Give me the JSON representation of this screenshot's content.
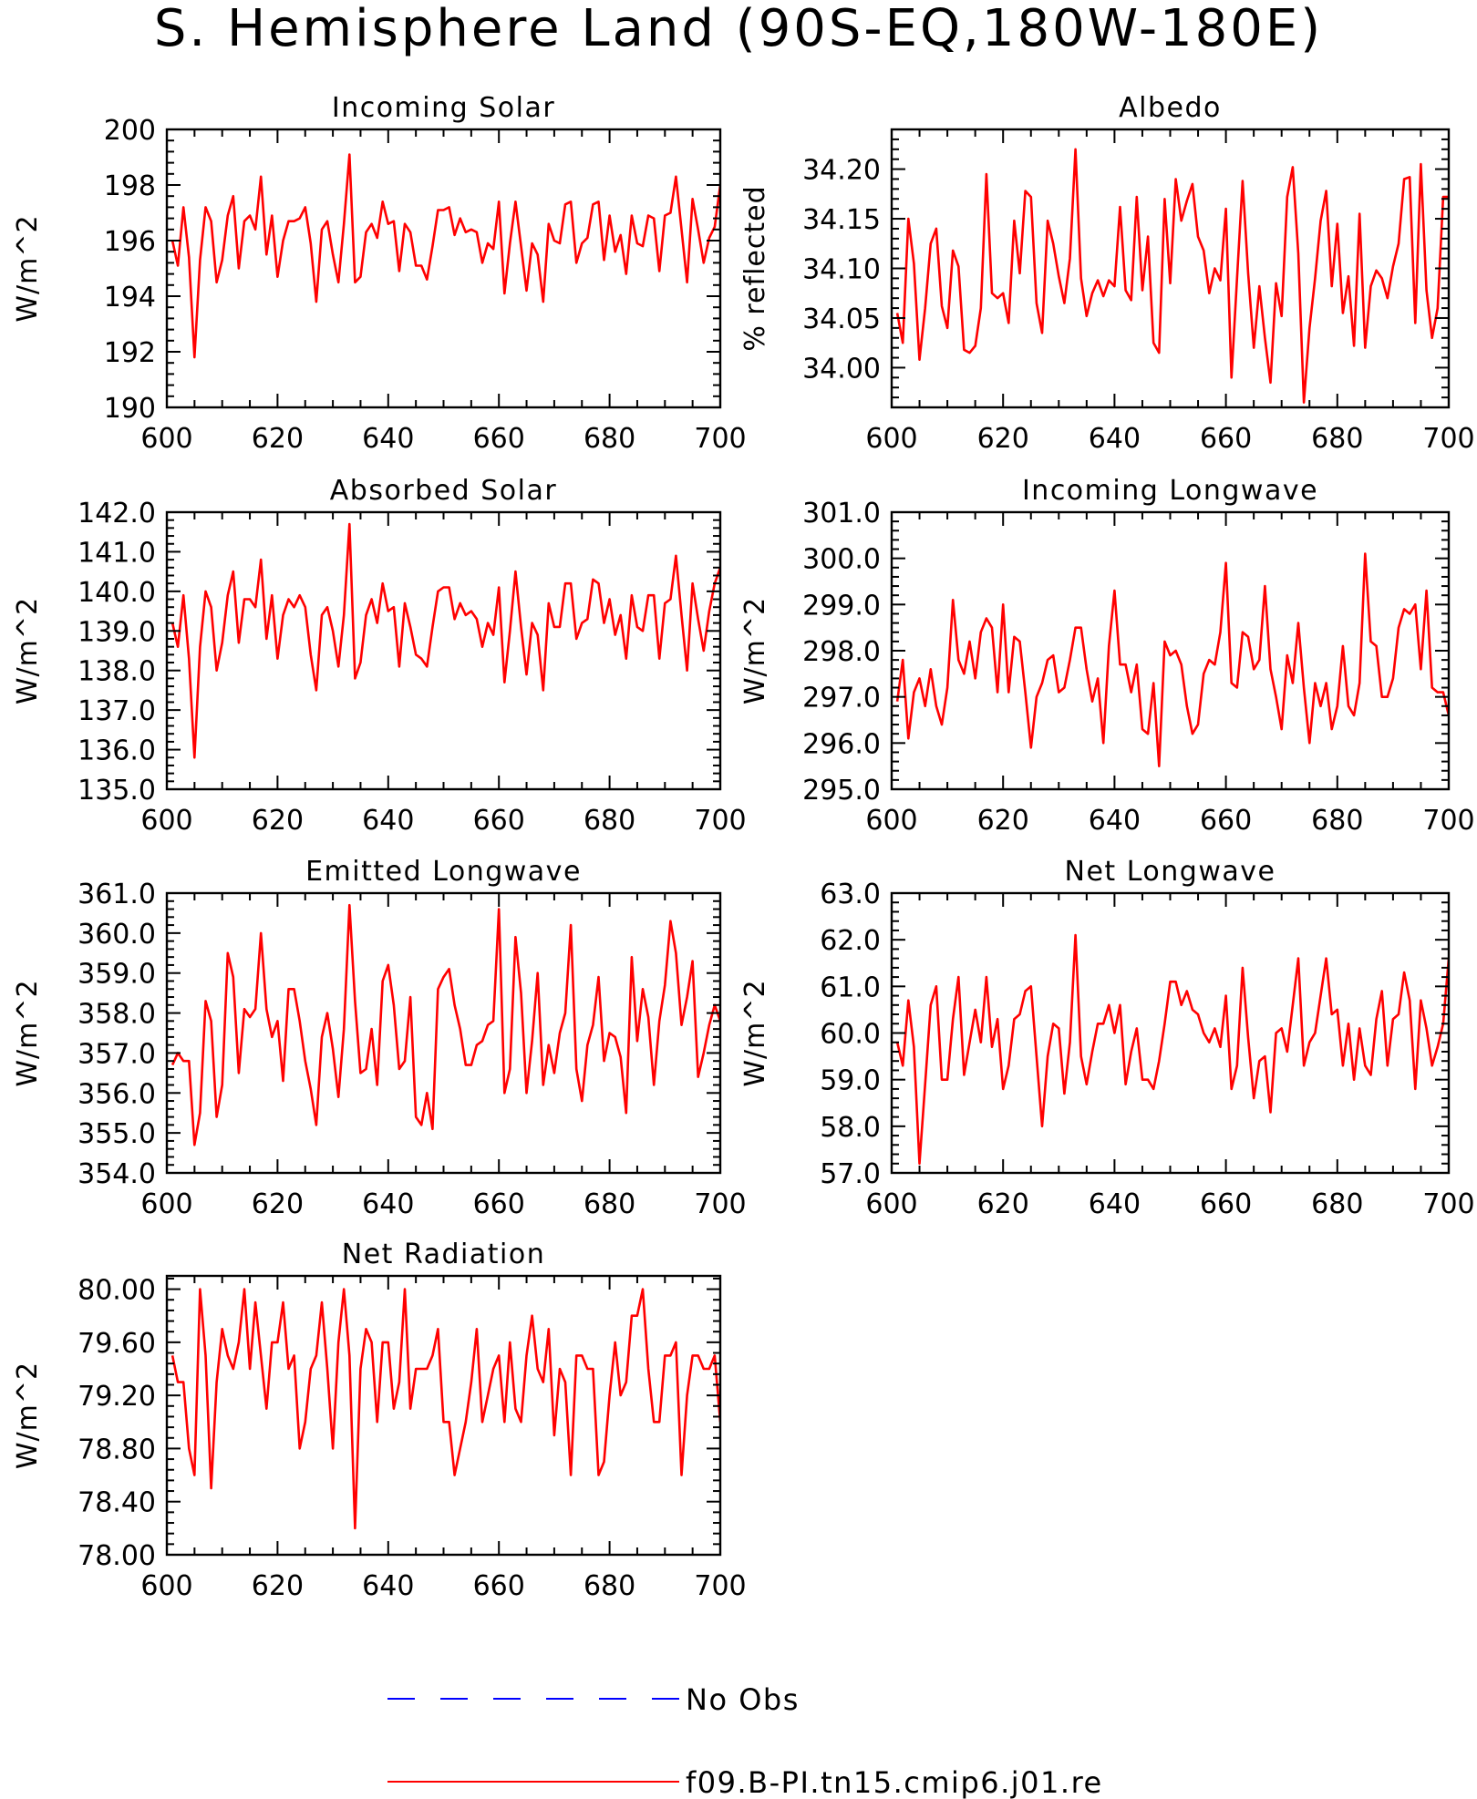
{
  "title": "S. Hemisphere Land (90S-EQ,180W-180E)",
  "legend": [
    {
      "label": "No Obs",
      "color": "#0000ff",
      "dash": true
    },
    {
      "label": "f09.B-PI.tn15.cmip6.j01.re",
      "color": "#ff0000",
      "dash": false
    }
  ],
  "chart_data": [
    {
      "type": "line",
      "title": "Incoming Solar",
      "ylabel": "W/m^2",
      "xlim": [
        600,
        700
      ],
      "ylim": [
        190,
        200
      ],
      "xticks": [
        600,
        620,
        640,
        660,
        680,
        700
      ],
      "yticks": [
        190,
        192,
        194,
        196,
        198,
        200
      ],
      "ytick_labels": [
        "190",
        "192",
        "194",
        "196",
        "198",
        "200"
      ],
      "x_start": 601,
      "series": [
        {
          "color": "#ff0000",
          "values": [
            196.0,
            195.1,
            197.2,
            195.4,
            191.8,
            195.3,
            197.2,
            196.7,
            194.5,
            195.3,
            196.9,
            197.6,
            195.0,
            196.7,
            196.9,
            196.4,
            198.3,
            195.5,
            196.9,
            194.7,
            196.0,
            196.7,
            196.7,
            196.8,
            197.2,
            195.9,
            193.8,
            196.4,
            196.7,
            195.5,
            194.5,
            196.6,
            199.1,
            194.5,
            194.7,
            196.3,
            196.6,
            196.1,
            197.4,
            196.6,
            196.7,
            194.9,
            196.6,
            196.3,
            195.1,
            195.1,
            194.6,
            195.8,
            197.1,
            197.1,
            197.2,
            196.2,
            196.8,
            196.3,
            196.4,
            196.3,
            195.2,
            195.9,
            195.7,
            197.4,
            194.1,
            195.9,
            197.4,
            195.8,
            194.2,
            195.9,
            195.5,
            193.8,
            196.6,
            196.0,
            195.9,
            197.3,
            197.4,
            195.2,
            195.9,
            196.1,
            197.3,
            197.4,
            195.3,
            196.9,
            195.6,
            196.2,
            194.8,
            196.9,
            195.9,
            195.8,
            196.9,
            196.8,
            194.9,
            196.9,
            197.0,
            198.3,
            196.4,
            194.5,
            197.5,
            196.4,
            195.2,
            196.1,
            196.5,
            198.0
          ]
        }
      ]
    },
    {
      "type": "line",
      "title": "Albedo",
      "ylabel": "% reflected",
      "xlim": [
        600,
        700
      ],
      "ylim": [
        33.96,
        34.24
      ],
      "xticks": [
        600,
        620,
        640,
        660,
        680,
        700
      ],
      "yticks": [
        34.0,
        34.05,
        34.1,
        34.15,
        34.2
      ],
      "ytick_labels": [
        "34.00",
        "34.05",
        "34.10",
        "34.15",
        "34.20"
      ],
      "x_start": 601,
      "series": [
        {
          "color": "#ff0000",
          "values": [
            34.055,
            34.025,
            34.15,
            34.105,
            34.008,
            34.06,
            34.125,
            34.14,
            34.062,
            34.04,
            34.118,
            34.102,
            34.018,
            34.015,
            34.022,
            34.06,
            34.195,
            34.075,
            34.07,
            34.075,
            34.045,
            34.148,
            34.095,
            34.178,
            34.172,
            34.065,
            34.035,
            34.148,
            34.125,
            34.092,
            34.065,
            34.11,
            34.22,
            34.09,
            34.052,
            34.075,
            34.088,
            34.072,
            34.088,
            34.082,
            34.162,
            34.078,
            34.068,
            34.172,
            34.078,
            34.132,
            34.025,
            34.015,
            34.17,
            34.085,
            34.19,
            34.148,
            34.168,
            34.185,
            34.132,
            34.118,
            34.075,
            34.1,
            34.088,
            34.16,
            33.99,
            34.09,
            34.188,
            34.095,
            34.02,
            34.082,
            34.03,
            33.985,
            34.085,
            34.052,
            34.172,
            34.202,
            34.115,
            33.965,
            34.04,
            34.09,
            34.148,
            34.178,
            34.082,
            34.145,
            34.055,
            34.092,
            34.022,
            34.155,
            34.02,
            34.082,
            34.098,
            34.09,
            34.07,
            34.102,
            34.125,
            34.19,
            34.192,
            34.045,
            34.205,
            34.078,
            34.03,
            34.06,
            34.172,
            34.172
          ]
        }
      ]
    },
    {
      "type": "line",
      "title": "Absorbed Solar",
      "ylabel": "W/m^2",
      "xlim": [
        600,
        700
      ],
      "ylim": [
        135,
        142
      ],
      "xticks": [
        600,
        620,
        640,
        660,
        680,
        700
      ],
      "yticks": [
        135,
        136,
        137,
        138,
        139,
        140,
        141,
        142
      ],
      "ytick_labels": [
        "135.0",
        "136.0",
        "137.0",
        "138.0",
        "139.0",
        "140.0",
        "141.0",
        "142.0"
      ],
      "x_start": 601,
      "series": [
        {
          "color": "#ff0000",
          "values": [
            139.2,
            138.6,
            139.9,
            138.3,
            135.8,
            138.6,
            140.0,
            139.6,
            138.0,
            138.7,
            139.9,
            140.5,
            138.7,
            139.8,
            139.8,
            139.6,
            140.8,
            138.8,
            139.9,
            138.3,
            139.4,
            139.8,
            139.6,
            139.9,
            139.6,
            138.4,
            137.5,
            139.4,
            139.6,
            139.0,
            138.1,
            139.4,
            141.7,
            137.8,
            138.2,
            139.4,
            139.8,
            139.2,
            140.2,
            139.5,
            139.6,
            138.1,
            139.7,
            139.1,
            138.4,
            138.3,
            138.1,
            139.1,
            140.0,
            140.1,
            140.1,
            139.3,
            139.7,
            139.4,
            139.5,
            139.3,
            138.6,
            139.2,
            138.9,
            140.1,
            137.7,
            139.0,
            140.5,
            139.1,
            137.9,
            139.2,
            138.9,
            137.5,
            139.7,
            139.1,
            139.1,
            140.2,
            140.2,
            138.8,
            139.2,
            139.3,
            140.3,
            140.2,
            139.2,
            139.8,
            138.9,
            139.4,
            138.3,
            139.9,
            139.1,
            139.0,
            139.9,
            139.9,
            138.3,
            139.7,
            139.8,
            140.9,
            139.4,
            138.0,
            140.2,
            139.3,
            138.5,
            139.5,
            140.2,
            140.6
          ]
        }
      ]
    },
    {
      "type": "line",
      "title": "Incoming Longwave",
      "ylabel": "W/m^2",
      "xlim": [
        600,
        700
      ],
      "ylim": [
        295,
        301
      ],
      "xticks": [
        600,
        620,
        640,
        660,
        680,
        700
      ],
      "yticks": [
        295,
        296,
        297,
        298,
        299,
        300,
        301
      ],
      "ytick_labels": [
        "295.0",
        "296.0",
        "297.0",
        "298.0",
        "299.0",
        "300.0",
        "301.0"
      ],
      "x_start": 601,
      "series": [
        {
          "color": "#ff0000",
          "values": [
            296.9,
            297.8,
            296.1,
            297.1,
            297.4,
            296.8,
            297.6,
            296.8,
            296.4,
            297.2,
            299.1,
            297.8,
            297.5,
            298.2,
            297.4,
            298.4,
            298.7,
            298.5,
            297.1,
            299.0,
            297.1,
            298.3,
            298.2,
            297.1,
            295.9,
            297.0,
            297.3,
            297.8,
            297.9,
            297.1,
            297.2,
            297.8,
            298.5,
            298.5,
            297.6,
            296.9,
            297.4,
            296.0,
            298.1,
            299.3,
            297.7,
            297.7,
            297.1,
            297.7,
            296.3,
            296.2,
            297.3,
            295.5,
            298.2,
            297.9,
            298.0,
            297.7,
            296.8,
            296.2,
            296.4,
            297.5,
            297.8,
            297.7,
            298.4,
            299.9,
            297.3,
            297.2,
            298.4,
            298.3,
            297.6,
            297.8,
            299.4,
            297.6,
            297.0,
            296.3,
            297.9,
            297.3,
            298.6,
            297.2,
            296.0,
            297.3,
            296.8,
            297.3,
            296.3,
            296.8,
            298.1,
            296.8,
            296.6,
            297.3,
            300.1,
            298.2,
            298.1,
            297.0,
            297.0,
            297.4,
            298.5,
            298.9,
            298.8,
            299.0,
            297.6,
            299.3,
            297.2,
            297.1,
            297.1,
            296.6
          ]
        }
      ]
    },
    {
      "type": "line",
      "title": "Emitted Longwave",
      "ylabel": "W/m^2",
      "xlim": [
        600,
        700
      ],
      "ylim": [
        354,
        361
      ],
      "xticks": [
        600,
        620,
        640,
        660,
        680,
        700
      ],
      "yticks": [
        354,
        355,
        356,
        357,
        358,
        359,
        360,
        361
      ],
      "ytick_labels": [
        "354.0",
        "355.0",
        "356.0",
        "357.0",
        "358.0",
        "359.0",
        "360.0",
        "361.0"
      ],
      "x_start": 601,
      "series": [
        {
          "color": "#ff0000",
          "values": [
            356.7,
            357.0,
            356.8,
            356.8,
            354.7,
            355.5,
            358.3,
            357.8,
            355.4,
            356.2,
            359.5,
            358.9,
            356.5,
            358.1,
            357.9,
            358.1,
            360.0,
            358.1,
            357.4,
            357.8,
            356.3,
            358.6,
            358.6,
            357.8,
            356.8,
            356.1,
            355.2,
            357.4,
            358.0,
            357.1,
            355.9,
            357.6,
            360.7,
            358.3,
            356.5,
            356.6,
            357.6,
            356.2,
            358.8,
            359.2,
            358.2,
            356.6,
            356.8,
            358.4,
            355.4,
            355.2,
            356.0,
            355.1,
            358.6,
            358.9,
            359.1,
            358.2,
            357.6,
            356.7,
            356.7,
            357.2,
            357.3,
            357.7,
            357.8,
            360.6,
            356.0,
            356.6,
            359.9,
            358.5,
            356.0,
            357.3,
            359.0,
            356.2,
            357.2,
            356.5,
            357.5,
            358.0,
            360.2,
            356.6,
            355.8,
            357.2,
            357.7,
            358.9,
            356.8,
            357.5,
            357.4,
            356.9,
            355.5,
            359.4,
            357.3,
            358.6,
            357.9,
            356.2,
            357.8,
            358.7,
            360.3,
            359.5,
            357.7,
            358.4,
            359.3,
            356.4,
            357.0,
            357.7,
            358.2,
            357.8
          ]
        }
      ]
    },
    {
      "type": "line",
      "title": "Net Longwave",
      "ylabel": "W/m^2",
      "xlim": [
        600,
        700
      ],
      "ylim": [
        57,
        63
      ],
      "xticks": [
        600,
        620,
        640,
        660,
        680,
        700
      ],
      "yticks": [
        57,
        58,
        59,
        60,
        61,
        62,
        63
      ],
      "ytick_labels": [
        "57.0",
        "58.0",
        "59.0",
        "60.0",
        "61.0",
        "62.0",
        "63.0"
      ],
      "x_start": 601,
      "series": [
        {
          "color": "#ff0000",
          "values": [
            59.8,
            59.3,
            60.7,
            59.7,
            57.2,
            58.9,
            60.6,
            61.0,
            59.0,
            59.0,
            60.3,
            61.2,
            59.1,
            59.8,
            60.5,
            59.8,
            61.2,
            59.7,
            60.3,
            58.8,
            59.3,
            60.3,
            60.4,
            60.9,
            61.0,
            59.5,
            58.0,
            59.5,
            60.2,
            60.1,
            58.7,
            59.8,
            62.1,
            59.5,
            58.9,
            59.6,
            60.2,
            60.2,
            60.6,
            60.0,
            60.6,
            58.9,
            59.6,
            60.1,
            59.0,
            59.0,
            58.8,
            59.4,
            60.2,
            61.1,
            61.1,
            60.6,
            60.9,
            60.5,
            60.4,
            60.0,
            59.8,
            60.1,
            59.7,
            60.8,
            58.8,
            59.3,
            61.4,
            59.9,
            58.6,
            59.4,
            59.5,
            58.3,
            60.0,
            60.1,
            59.6,
            60.6,
            61.6,
            59.3,
            59.8,
            60.0,
            60.8,
            61.6,
            60.4,
            60.5,
            59.3,
            60.2,
            59.0,
            60.1,
            59.3,
            59.1,
            60.3,
            60.9,
            59.3,
            60.3,
            60.4,
            61.3,
            60.7,
            58.8,
            60.7,
            60.1,
            59.3,
            59.7,
            60.2,
            61.6
          ]
        }
      ]
    },
    {
      "type": "line",
      "title": "Net Radiation",
      "ylabel": "W/m^2",
      "xlim": [
        600,
        700
      ],
      "ylim": [
        78.0,
        80.1
      ],
      "xticks": [
        600,
        620,
        640,
        660,
        680,
        700
      ],
      "yticks": [
        78.0,
        78.4,
        78.8,
        79.2,
        79.6,
        80.0
      ],
      "ytick_labels": [
        "78.00",
        "78.40",
        "78.80",
        "79.20",
        "79.60",
        "80.00"
      ],
      "x_start": 601,
      "series": [
        {
          "color": "#ff0000",
          "values": [
            79.5,
            79.3,
            79.3,
            78.8,
            78.6,
            80.0,
            79.5,
            78.5,
            79.3,
            79.7,
            79.5,
            79.4,
            79.6,
            80.0,
            79.4,
            79.9,
            79.5,
            79.1,
            79.6,
            79.6,
            79.9,
            79.4,
            79.5,
            78.8,
            79.0,
            79.4,
            79.5,
            79.9,
            79.4,
            78.8,
            79.6,
            80.0,
            79.5,
            78.2,
            79.4,
            79.7,
            79.6,
            79.0,
            79.6,
            79.6,
            79.1,
            79.3,
            80.0,
            79.1,
            79.4,
            79.4,
            79.4,
            79.5,
            79.7,
            79.0,
            79.0,
            78.6,
            78.8,
            79.0,
            79.3,
            79.7,
            79.0,
            79.2,
            79.4,
            79.5,
            79.0,
            79.6,
            79.1,
            79.0,
            79.5,
            79.8,
            79.4,
            79.3,
            79.7,
            78.9,
            79.4,
            79.3,
            78.6,
            79.5,
            79.5,
            79.4,
            79.4,
            78.6,
            78.7,
            79.2,
            79.6,
            79.2,
            79.3,
            79.8,
            79.8,
            80.0,
            79.4,
            79.0,
            79.0,
            79.5,
            79.5,
            79.6,
            78.6,
            79.2,
            79.5,
            79.5,
            79.4,
            79.4,
            79.5,
            79.0
          ]
        }
      ]
    }
  ]
}
